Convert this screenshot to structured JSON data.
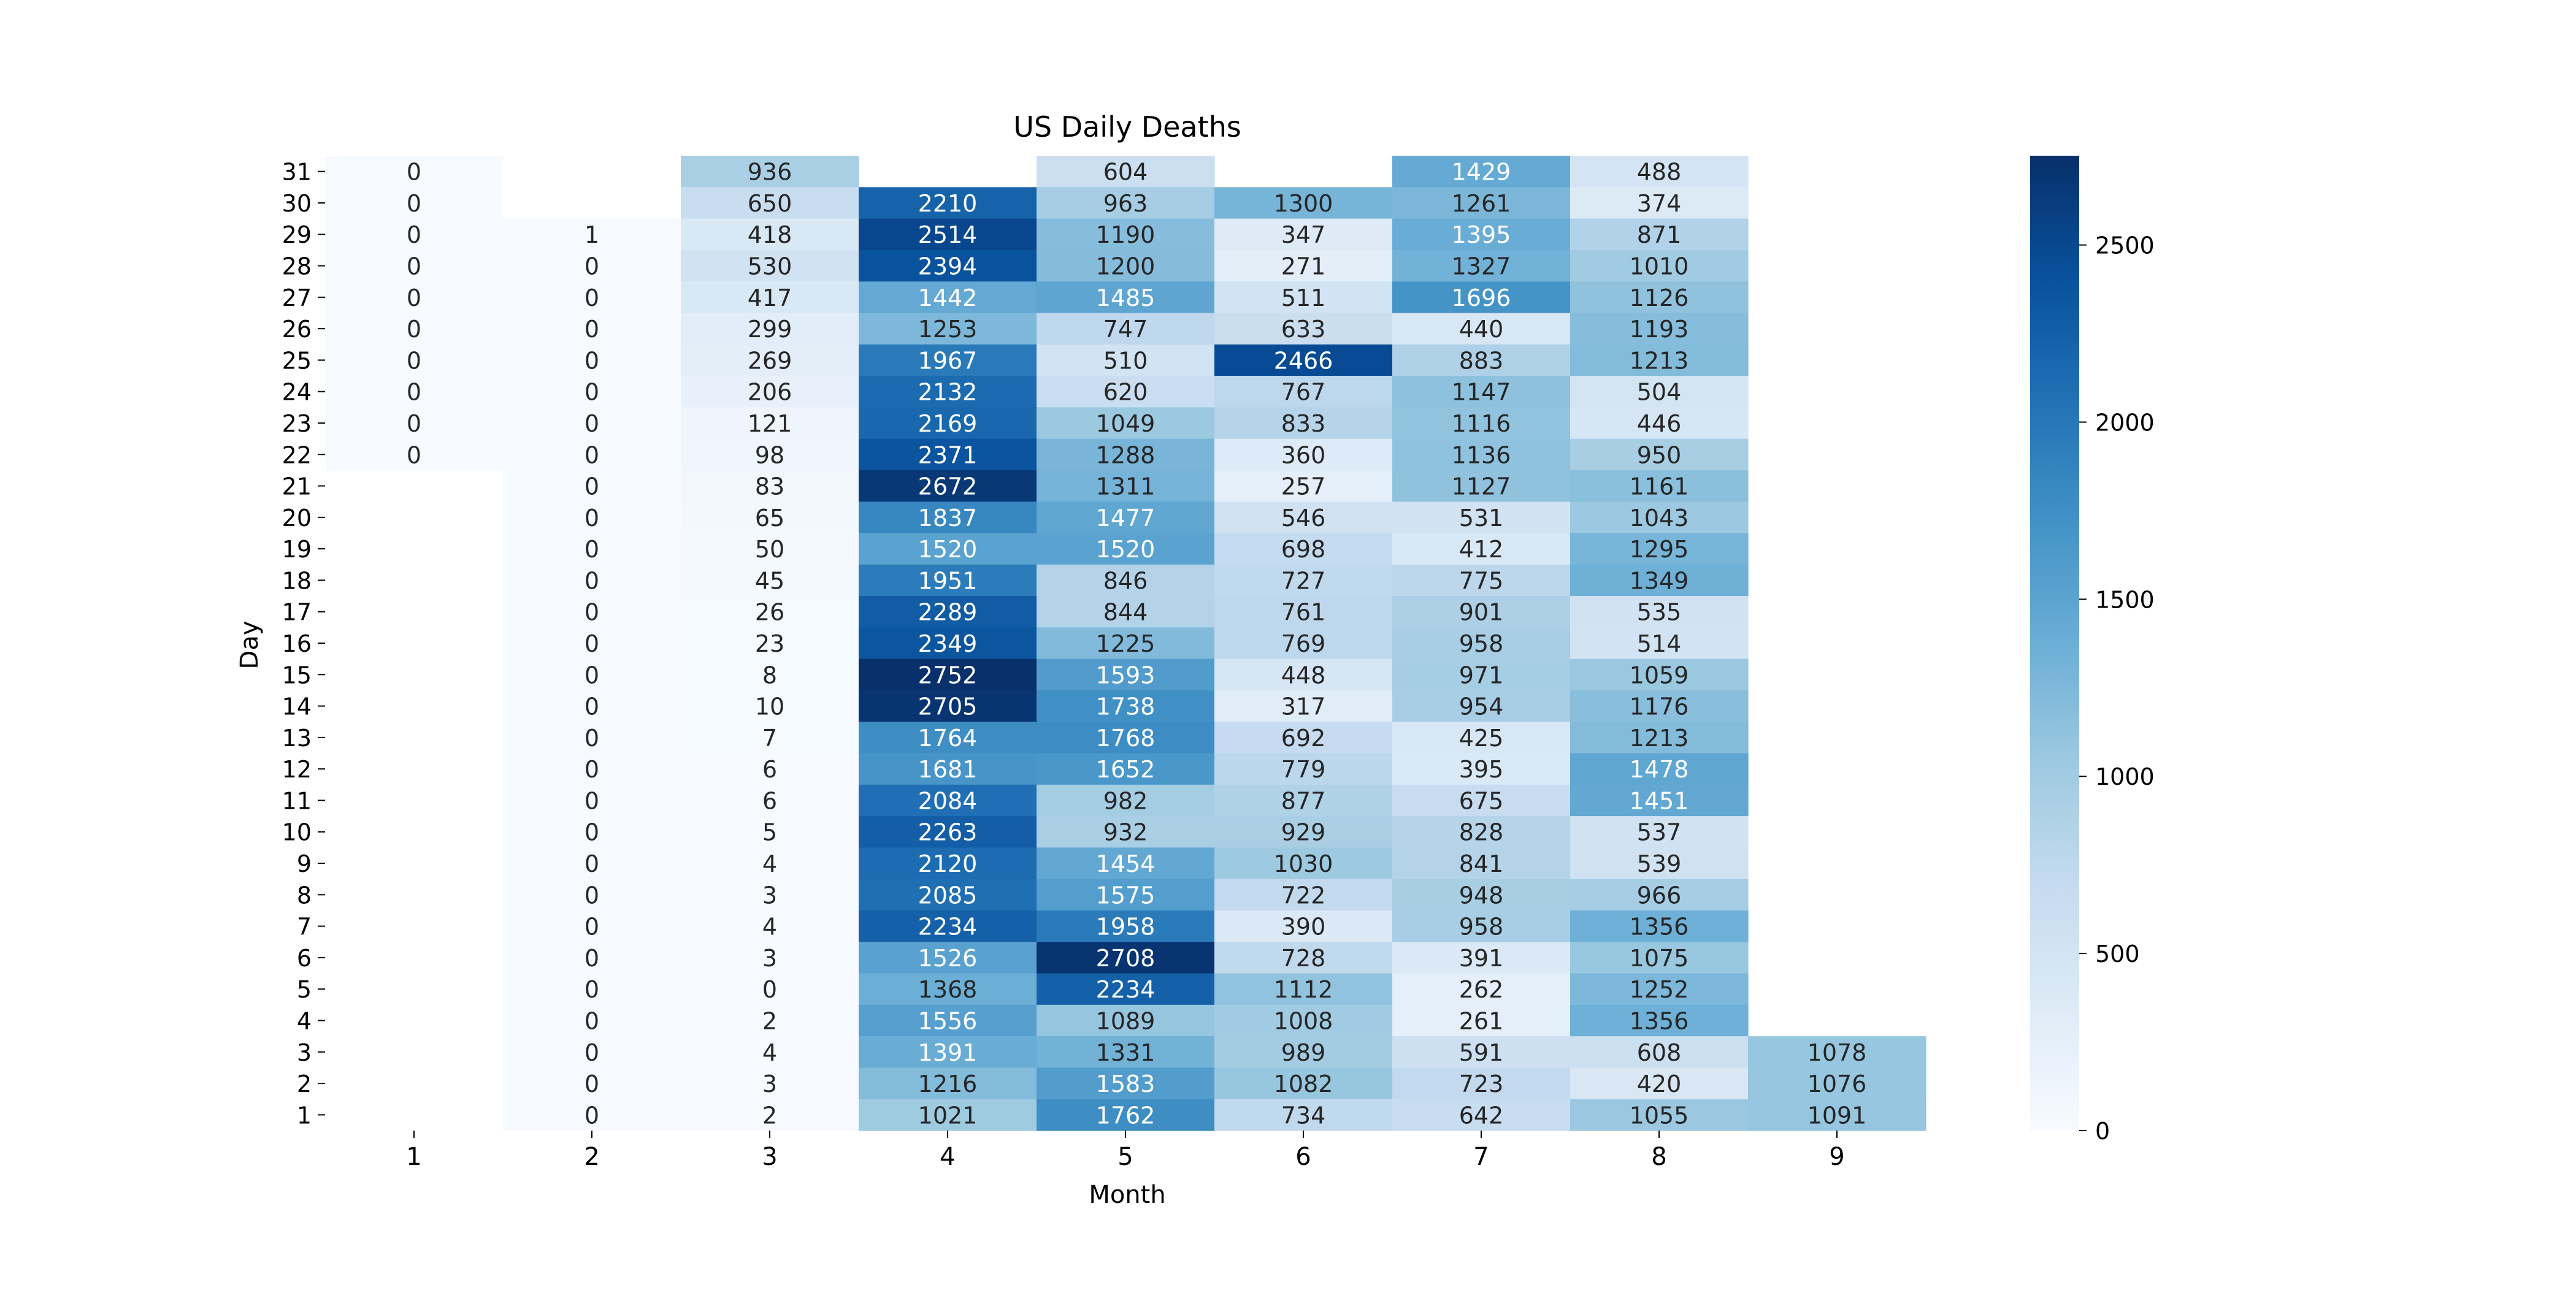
{
  "chart_data": {
    "type": "heatmap",
    "title": "US Daily Deaths",
    "xlabel": "Month",
    "ylabel": "Day",
    "x_categories": [
      "1",
      "2",
      "3",
      "4",
      "5",
      "6",
      "7",
      "8",
      "9"
    ],
    "y_categories": [
      "31",
      "30",
      "29",
      "28",
      "27",
      "26",
      "25",
      "24",
      "23",
      "22",
      "21",
      "20",
      "19",
      "18",
      "17",
      "16",
      "15",
      "14",
      "13",
      "12",
      "11",
      "10",
      "9",
      "8",
      "7",
      "6",
      "5",
      "4",
      "3",
      "2",
      "1"
    ],
    "values": [
      [
        0,
        null,
        936,
        null,
        604,
        null,
        1429,
        488,
        null
      ],
      [
        0,
        null,
        650,
        2210,
        963,
        1300,
        1261,
        374,
        null
      ],
      [
        0,
        1,
        418,
        2514,
        1190,
        347,
        1395,
        871,
        null
      ],
      [
        0,
        0,
        530,
        2394,
        1200,
        271,
        1327,
        1010,
        null
      ],
      [
        0,
        0,
        417,
        1442,
        1485,
        511,
        1696,
        1126,
        null
      ],
      [
        0,
        0,
        299,
        1253,
        747,
        633,
        440,
        1193,
        null
      ],
      [
        0,
        0,
        269,
        1967,
        510,
        2466,
        883,
        1213,
        null
      ],
      [
        0,
        0,
        206,
        2132,
        620,
        767,
        1147,
        504,
        null
      ],
      [
        0,
        0,
        121,
        2169,
        1049,
        833,
        1116,
        446,
        null
      ],
      [
        0,
        0,
        98,
        2371,
        1288,
        360,
        1136,
        950,
        null
      ],
      [
        null,
        0,
        83,
        2672,
        1311,
        257,
        1127,
        1161,
        null
      ],
      [
        null,
        0,
        65,
        1837,
        1477,
        546,
        531,
        1043,
        null
      ],
      [
        null,
        0,
        50,
        1520,
        1520,
        698,
        412,
        1295,
        null
      ],
      [
        null,
        0,
        45,
        1951,
        846,
        727,
        775,
        1349,
        null
      ],
      [
        null,
        0,
        26,
        2289,
        844,
        761,
        901,
        535,
        null
      ],
      [
        null,
        0,
        23,
        2349,
        1225,
        769,
        958,
        514,
        null
      ],
      [
        null,
        0,
        8,
        2752,
        1593,
        448,
        971,
        1059,
        null
      ],
      [
        null,
        0,
        10,
        2705,
        1738,
        317,
        954,
        1176,
        null
      ],
      [
        null,
        0,
        7,
        1764,
        1768,
        692,
        425,
        1213,
        null
      ],
      [
        null,
        0,
        6,
        1681,
        1652,
        779,
        395,
        1478,
        null
      ],
      [
        null,
        0,
        6,
        2084,
        982,
        877,
        675,
        1451,
        null
      ],
      [
        null,
        0,
        5,
        2263,
        932,
        929,
        828,
        537,
        null
      ],
      [
        null,
        0,
        4,
        2120,
        1454,
        1030,
        841,
        539,
        null
      ],
      [
        null,
        0,
        3,
        2085,
        1575,
        722,
        948,
        966,
        null
      ],
      [
        null,
        0,
        4,
        2234,
        1958,
        390,
        958,
        1356,
        null
      ],
      [
        null,
        0,
        3,
        1526,
        2708,
        728,
        391,
        1075,
        null
      ],
      [
        null,
        0,
        0,
        1368,
        2234,
        1112,
        262,
        1252,
        null
      ],
      [
        null,
        0,
        2,
        1556,
        1089,
        1008,
        261,
        1356,
        null
      ],
      [
        null,
        0,
        4,
        1391,
        1331,
        989,
        591,
        608,
        1078
      ],
      [
        null,
        0,
        3,
        1216,
        1583,
        1082,
        723,
        420,
        1076
      ],
      [
        null,
        0,
        2,
        1021,
        1762,
        734,
        642,
        1055,
        1091
      ]
    ],
    "colormap": "Blues",
    "colorbar": {
      "min": 0,
      "max": 2752,
      "ticks": [
        0,
        500,
        1000,
        1500,
        2000,
        2500
      ]
    }
  }
}
